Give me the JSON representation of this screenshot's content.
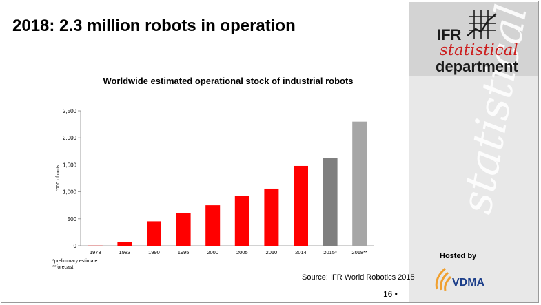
{
  "slide": {
    "title": "2018: 2.3 million robots in operation",
    "source": "Source: IFR World Robotics 2015",
    "page_number": "16 •",
    "footnote_1": "*preliminary estimate",
    "footnote_2": "**forecast"
  },
  "logo": {
    "ifr": "IFR",
    "statistical": "statistical",
    "department": "department",
    "watermark": "statistical"
  },
  "hosted": {
    "label": "Hosted by",
    "brand": "VDMA"
  },
  "colors": {
    "bar_red": "#ff0000",
    "bar_dark_grey": "#7f7f7f",
    "bar_light_grey": "#a6a6a6",
    "logo_red": "#cc1f1f",
    "vdma_blue": "#1d3f8a",
    "vdma_orange": "#f0a030"
  },
  "chart_data": {
    "type": "bar",
    "title": "Worldwide estimated operational stock of industrial robots",
    "xlabel": "",
    "ylabel": "'000 of units",
    "categories": [
      "1973",
      "1983",
      "1990",
      "1995",
      "2000",
      "2005",
      "2010",
      "2014",
      "2015*",
      "2018**"
    ],
    "values": [
      3,
      66,
      454,
      600,
      751,
      923,
      1059,
      1480,
      1630,
      2300
    ],
    "bar_colors": [
      "red",
      "red",
      "red",
      "red",
      "red",
      "red",
      "red",
      "red",
      "dark-grey",
      "light-grey"
    ],
    "ylim": [
      0,
      2500
    ],
    "yticks": [
      0,
      500,
      1000,
      1500,
      2000,
      2500
    ],
    "ytick_labels": [
      "0",
      "500",
      "1,000",
      "1,500",
      "2,000",
      "2,500"
    ],
    "grid": false,
    "legend": "none"
  }
}
